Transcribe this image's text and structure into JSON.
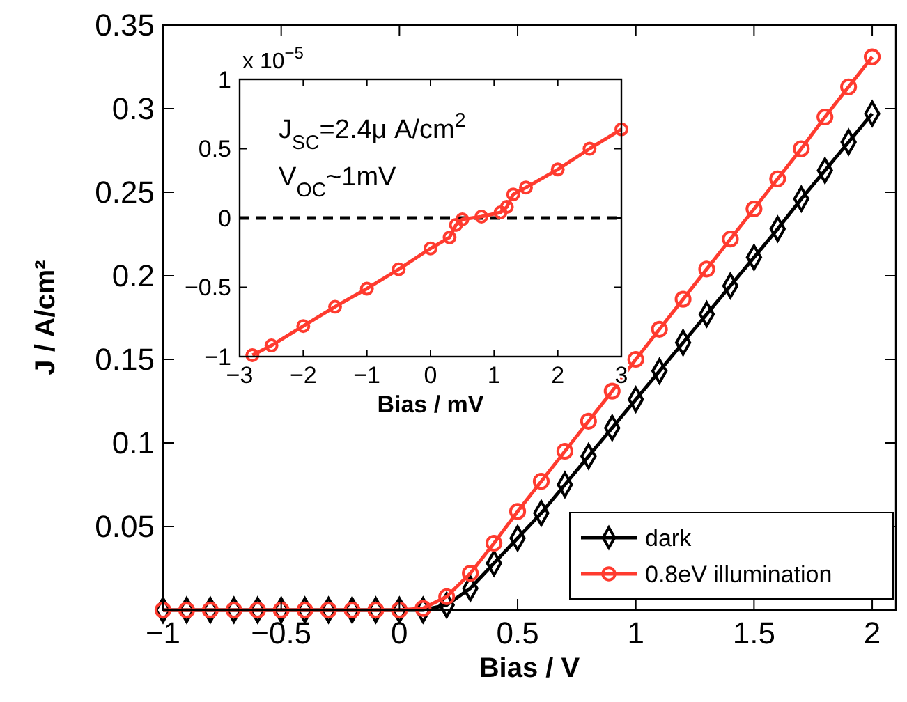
{
  "chart_data": [
    {
      "type": "line",
      "xlabel": "Bias / V",
      "ylabel": "J / A/cm²",
      "xlim": [
        -1,
        2.1
      ],
      "ylim": [
        0,
        0.35
      ],
      "xticks": [
        -1,
        -0.5,
        0,
        0.5,
        1,
        1.5,
        2
      ],
      "yticks": [
        0.05,
        0.1,
        0.15,
        0.2,
        0.25,
        0.3,
        0.35
      ],
      "legend": "bottom right",
      "line_style": "solid",
      "x": [
        -1,
        -0.9,
        -0.8,
        -0.7,
        -0.6,
        -0.5,
        -0.4,
        -0.3,
        -0.2,
        -0.1,
        0,
        0.1,
        0.2,
        0.3,
        0.4,
        0.5,
        0.6,
        0.7,
        0.8,
        0.9,
        1,
        1.1,
        1.2,
        1.3,
        1.4,
        1.5,
        1.6,
        1.7,
        1.8,
        1.9,
        2
      ],
      "series": [
        {
          "name": "dark",
          "color": "#000000",
          "marker": "diamond",
          "values": [
            0,
            0,
            0,
            0,
            0,
            0,
            0,
            0,
            0,
            0,
            0,
            0,
            0.003,
            0.013,
            0.028,
            0.043,
            0.058,
            0.075,
            0.092,
            0.109,
            0.126,
            0.143,
            0.16,
            0.177,
            0.194,
            0.211,
            0.228,
            0.246,
            0.263,
            0.28,
            0.297
          ]
        },
        {
          "name": "0.8eV illumination",
          "color": "#ff3b2f",
          "marker": "circle",
          "values": [
            0,
            0,
            0,
            0,
            0,
            0,
            0,
            0,
            0,
            0,
            0,
            0.001,
            0.008,
            0.022,
            0.04,
            0.059,
            0.077,
            0.095,
            0.113,
            0.131,
            0.15,
            0.168,
            0.186,
            0.204,
            0.222,
            0.24,
            0.258,
            0.276,
            0.295,
            0.313,
            0.331
          ]
        }
      ]
    },
    {
      "type": "line",
      "xlabel": "Bias / mV",
      "xlim": [
        -3,
        3
      ],
      "ylim": [
        -1,
        1
      ],
      "xticks": [
        -3,
        -2,
        -1,
        0,
        1,
        2,
        3
      ],
      "yticks": [
        -1,
        -0.5,
        0,
        0.5,
        1
      ],
      "line_style": "solid",
      "annotations": [
        "x 10$^{−5}$",
        "J$_{SC}$=2.4μ A/cm$^{2}$",
        "V$_{OC}$~1mV"
      ],
      "ref_lines": [
        {
          "axis": "y",
          "value": 0,
          "color": "#000000",
          "line_style": "dashed"
        }
      ],
      "series": [
        {
          "color": "#ff3b2f",
          "marker": "circle",
          "x": [
            -2.8,
            -2.5,
            -2,
            -1.5,
            -1,
            -0.5,
            0,
            0.3,
            0.4,
            0.5,
            0.8,
            1.1,
            1.2,
            1.3,
            1.5,
            2,
            2.5,
            3
          ],
          "values": [
            -0.99,
            -0.92,
            -0.78,
            -0.64,
            -0.51,
            -0.37,
            -0.22,
            -0.14,
            -0.05,
            -0.01,
            0.01,
            0.04,
            0.08,
            0.17,
            0.22,
            0.35,
            0.5,
            0.64
          ]
        }
      ]
    }
  ]
}
